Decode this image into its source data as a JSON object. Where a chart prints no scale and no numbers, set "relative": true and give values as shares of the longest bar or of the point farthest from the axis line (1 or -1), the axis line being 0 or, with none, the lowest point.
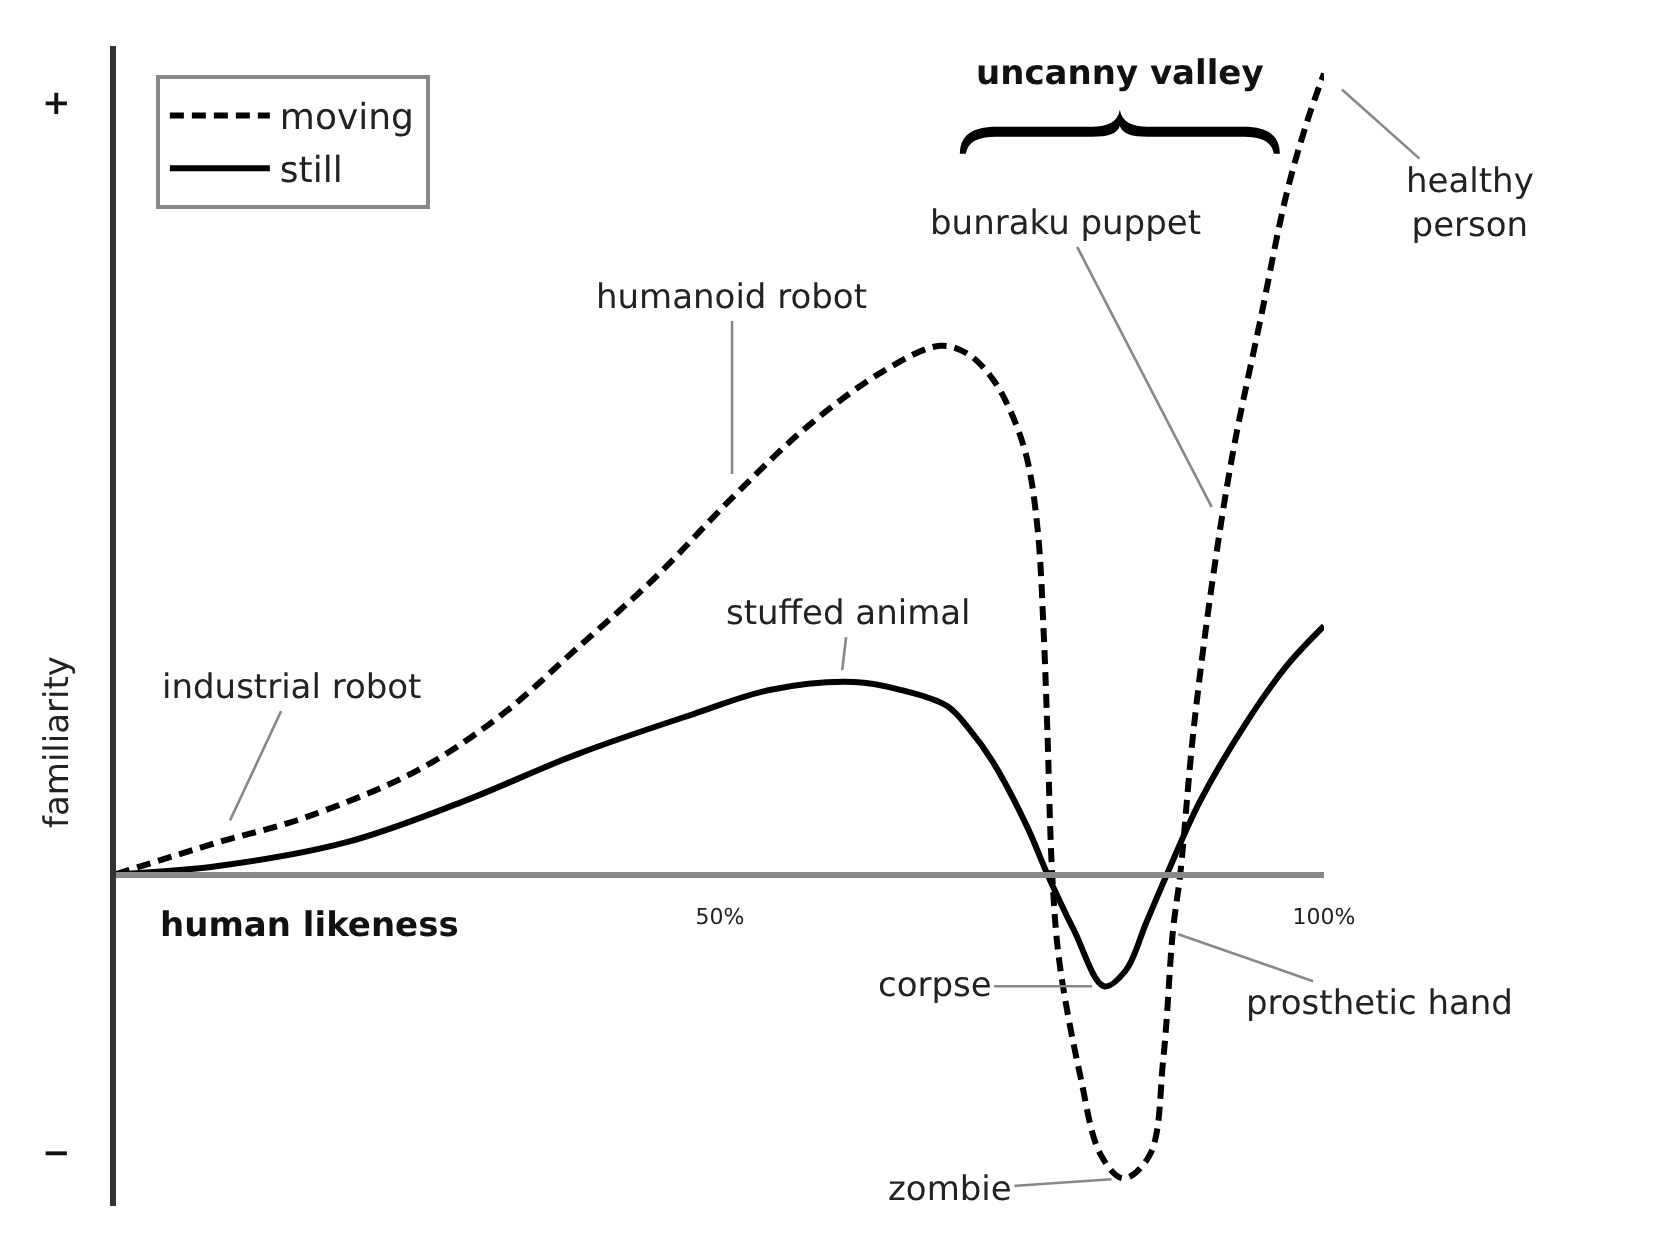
{
  "chart_data": {
    "type": "line",
    "relative": true,
    "xlabel": "human likeness",
    "ylabel": "familiarity",
    "xlim": [
      0,
      100
    ],
    "xticks": [
      {
        "value": 50,
        "label": "50%"
      },
      {
        "value": 100,
        "label": "100%"
      }
    ],
    "legend": "top left",
    "series": [
      {
        "name": "moving",
        "color": "#000000",
        "line_style": "dashed",
        "x": [
          0,
          8.5,
          15.5,
          25,
          32,
          38,
          44.6,
          51,
          57.3,
          63.7,
          68.2,
          70.5,
          72.5,
          74,
          75.4,
          76.3,
          76.8,
          77.1,
          77.5,
          78.1,
          79.8,
          81.5,
          83.4,
          85.6,
          86.7,
          87.5,
          88.1,
          89.2,
          90.8,
          92.5,
          94.7,
          96.9,
          98.6,
          100
        ],
        "values": [
          0,
          0.04,
          0.07,
          0.13,
          0.2,
          0.28,
          0.37,
          0.47,
          0.56,
          0.63,
          0.66,
          0.65,
          0.62,
          0.58,
          0.52,
          0.43,
          0.3,
          0.18,
          0,
          -0.11,
          -0.25,
          -0.35,
          -0.38,
          -0.35,
          -0.23,
          -0.07,
          0,
          0.18,
          0.37,
          0.53,
          0.69,
          0.85,
          0.94,
          1
        ]
      },
      {
        "name": "still",
        "color": "#000000",
        "line_style": "solid",
        "x": [
          0,
          8.3,
          19.1,
          28.6,
          38.2,
          47.8,
          54.1,
          61.1,
          65,
          68.8,
          70.7,
          72.6,
          75.4,
          77.1,
          79.3,
          81.8,
          83.6,
          85.3,
          87,
          89.7,
          93.6,
          96.9,
          100
        ],
        "values": [
          0,
          0.01,
          0.04,
          0.09,
          0.15,
          0.2,
          0.23,
          0.24,
          0.23,
          0.21,
          0.18,
          0.14,
          0.06,
          0,
          -0.07,
          -0.14,
          -0.12,
          -0.06,
          0,
          0.09,
          0.19,
          0.26,
          0.31
        ]
      }
    ],
    "annotations": [
      "uncanny valley",
      {
        "text": "humanoid robot",
        "x": 51,
        "y": 0.47
      },
      {
        "text": "industrial robot",
        "x": 8.6,
        "y": 0.04
      },
      {
        "text": "stuffed animal",
        "x": 60,
        "y": 0.24
      },
      {
        "text": "bunraku puppet",
        "x": 91,
        "y": 0.45
      },
      {
        "text": "healthy\nperson",
        "x": 100,
        "y": 1
      },
      {
        "text": "corpse",
        "x": 81.8,
        "y": -0.14
      },
      {
        "text": "zombie",
        "x": 83.4,
        "y": -0.38
      },
      {
        "text": "prosthetic hand",
        "x": 87,
        "y": -0.07
      },
      "+",
      "−"
    ]
  }
}
